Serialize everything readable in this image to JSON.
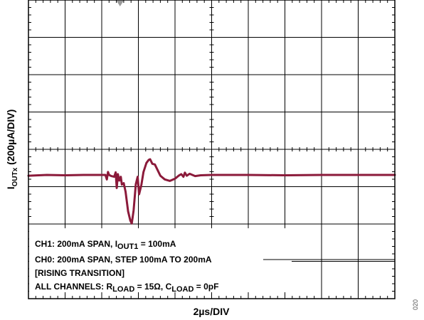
{
  "chart_data": {
    "type": "line",
    "xlabel": "2µs/DIV",
    "ylabel": {
      "main": "I",
      "sub": "OUTx",
      "rest": " (200µA/DIV)"
    },
    "x_divisions": 10,
    "y_divisions": 8,
    "x_per_div_us": 2,
    "y_per_div_uA": 200,
    "grid": true,
    "trigger_marker_div": 2.5,
    "series": [
      {
        "color": "#8B1A3A",
        "points": [
          [
            0.0,
            -0.02
          ],
          [
            0.5,
            0.0
          ],
          [
            1.0,
            -0.01
          ],
          [
            1.5,
            0.0
          ],
          [
            2.1,
            0.0
          ],
          [
            2.14,
            -0.12
          ],
          [
            2.17,
            0.08
          ],
          [
            2.2,
            0.0
          ],
          [
            2.26,
            -0.03
          ],
          [
            2.34,
            -0.05
          ],
          [
            2.38,
            0.07
          ],
          [
            2.41,
            -0.35
          ],
          [
            2.44,
            0.02
          ],
          [
            2.48,
            -0.15
          ],
          [
            2.52,
            -0.05
          ],
          [
            2.55,
            -0.26
          ],
          [
            2.6,
            -0.22
          ],
          [
            2.65,
            -0.45
          ],
          [
            2.72,
            -0.98
          ],
          [
            2.78,
            -1.22
          ],
          [
            2.82,
            -1.3
          ],
          [
            2.87,
            -0.95
          ],
          [
            2.93,
            -0.25
          ],
          [
            2.98,
            -0.05
          ],
          [
            3.02,
            -0.52
          ],
          [
            3.08,
            -0.28
          ],
          [
            3.14,
            0.08
          ],
          [
            3.22,
            0.32
          ],
          [
            3.28,
            0.4
          ],
          [
            3.32,
            0.42
          ],
          [
            3.38,
            0.3
          ],
          [
            3.45,
            0.28
          ],
          [
            3.52,
            0.14
          ],
          [
            3.6,
            -0.02
          ],
          [
            3.72,
            -0.12
          ],
          [
            3.86,
            -0.16
          ],
          [
            4.0,
            -0.1
          ],
          [
            4.1,
            -0.02
          ],
          [
            4.17,
            0.02
          ],
          [
            4.23,
            -0.05
          ],
          [
            4.27,
            0.06
          ],
          [
            4.32,
            -0.02
          ],
          [
            4.4,
            0.03
          ],
          [
            4.55,
            -0.03
          ],
          [
            4.7,
            -0.01
          ],
          [
            5.0,
            0.0
          ],
          [
            6.0,
            0.0
          ],
          [
            7.0,
            -0.01
          ],
          [
            8.0,
            0.0
          ],
          [
            9.0,
            0.0
          ],
          [
            10.0,
            0.0
          ]
        ]
      }
    ],
    "annotations": [
      [
        {
          "t": "CH1: 200mA SPAN, I"
        },
        {
          "t": "OUT1",
          "sub": true
        },
        {
          "t": " = 100mA"
        }
      ],
      [
        {
          "t": "CH0: 200mA SPAN, STEP 100mA TO 200mA"
        }
      ],
      [
        {
          "t": "[RISING TRANSITION]"
        }
      ],
      [
        {
          "t": "ALL CHANNELS: R"
        },
        {
          "t": "LOAD",
          "sub": true
        },
        {
          "t": " = 15Ω, C"
        },
        {
          "t": "LOAD",
          "sub": true
        },
        {
          "t": " = 0pF"
        }
      ]
    ],
    "figure_code": "020"
  }
}
